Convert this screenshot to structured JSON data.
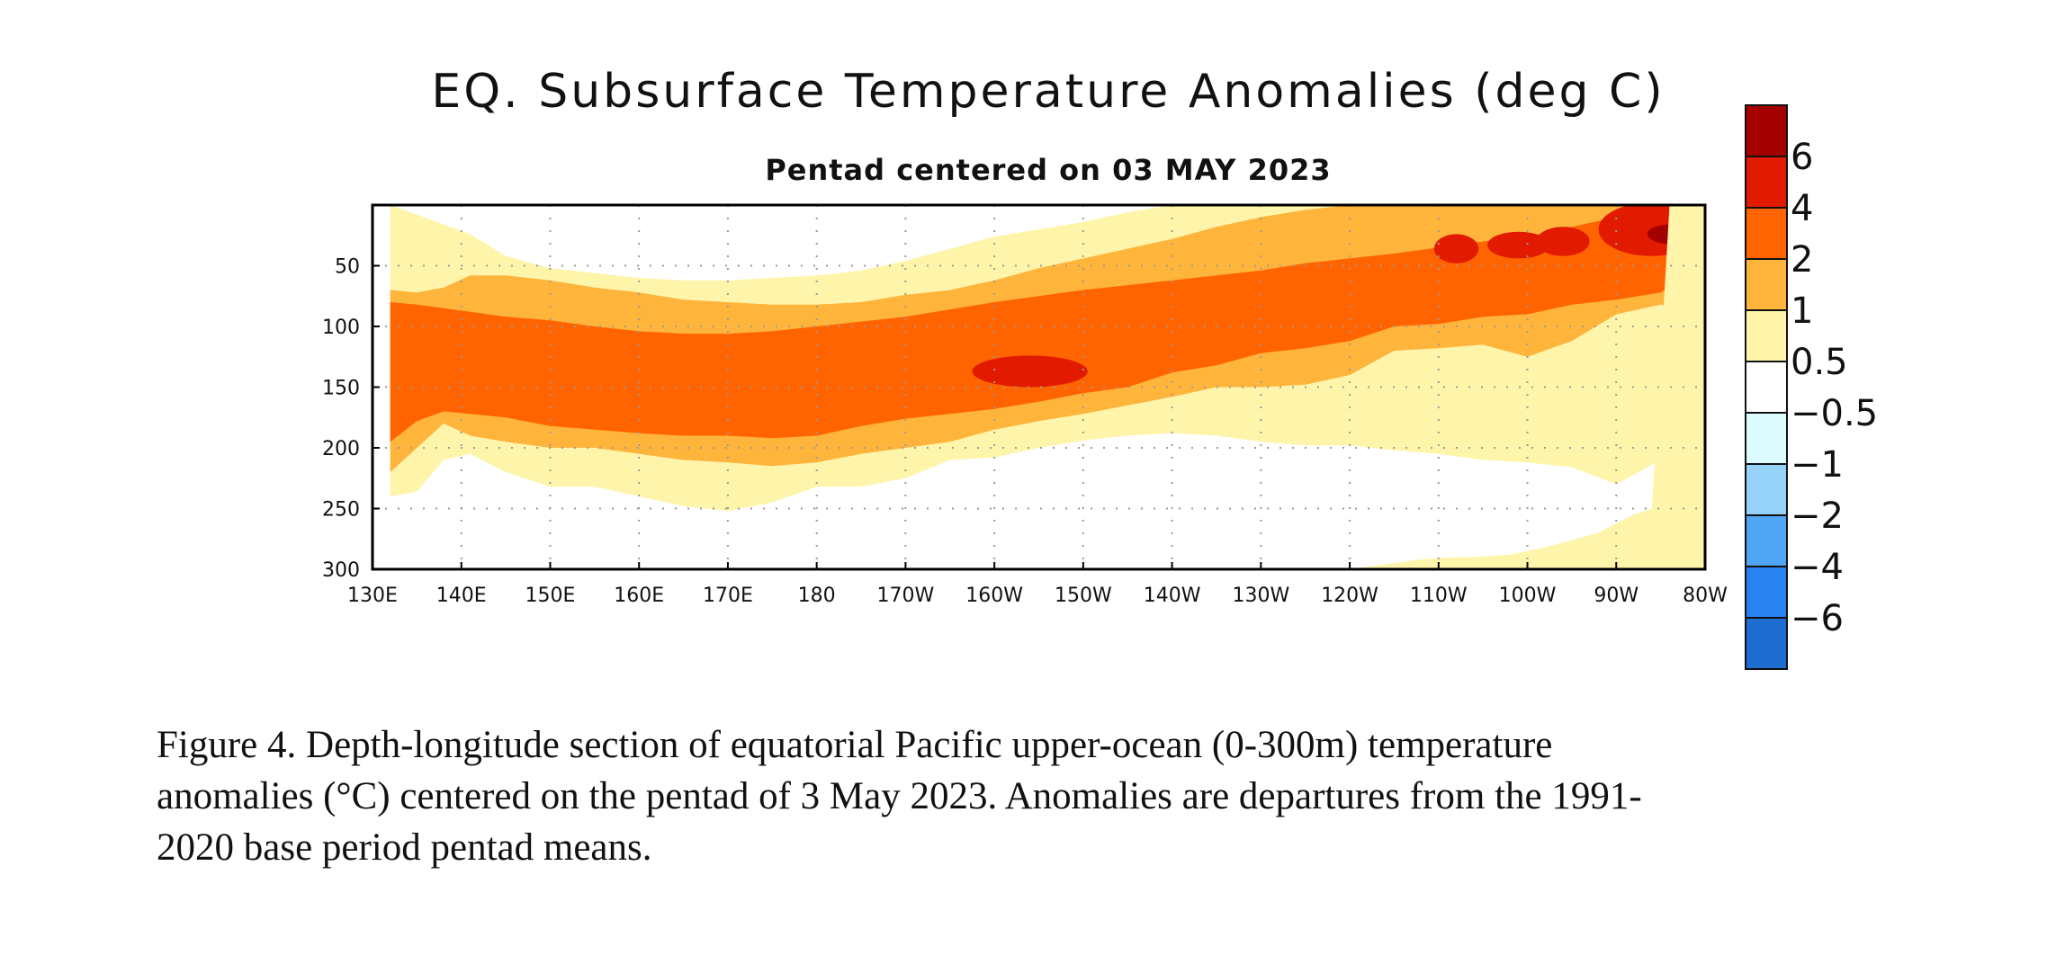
{
  "chart_data": {
    "type": "heatmap",
    "title": "EQ. Subsurface Temperature Anomalies (deg C)",
    "subtitle": "Pentad centered on 03 MAY 2023",
    "xlabel": "",
    "ylabel": "",
    "x_ticks": [
      "130E",
      "140E",
      "150E",
      "160E",
      "170E",
      "180",
      "170W",
      "160W",
      "150W",
      "140W",
      "130W",
      "120W",
      "110W",
      "100W",
      "90W",
      "80W"
    ],
    "x_values_lon_east": [
      130,
      140,
      150,
      160,
      170,
      180,
      190,
      200,
      210,
      220,
      230,
      240,
      250,
      260,
      270,
      280
    ],
    "xlim_lon_east": [
      130,
      280
    ],
    "y_ticks": [
      50,
      100,
      150,
      200,
      250,
      300
    ],
    "ylim_depth_m": [
      0,
      300
    ],
    "y_reversed": true,
    "grid": true,
    "legend_placement": "right",
    "colorbar": {
      "labels": [
        "6",
        "4",
        "2",
        "1",
        "0.5",
        "−0.5",
        "−1",
        "−2",
        "−4",
        "−6"
      ],
      "boundaries": [
        6,
        4,
        2,
        1,
        0.5,
        -0.5,
        -1,
        -2,
        -4,
        -6
      ],
      "colors": [
        "#a50000",
        "#e21a00",
        "#ff6400",
        "#ffb43c",
        "#fff5aa",
        "#ffffff",
        "#dcfcff",
        "#96d2fa",
        "#50a5f5",
        "#2882f0",
        "#1e6ed2"
      ]
    },
    "levels": [
      {
        "min": 0.5,
        "color": "#fff5aa",
        "lon": [
          132,
          135,
          138,
          141,
          145,
          150,
          155,
          160,
          165,
          170,
          175,
          180,
          185,
          190,
          195,
          200,
          205,
          210,
          215,
          220,
          225,
          230,
          235,
          240,
          245,
          250,
          255,
          260,
          265,
          270,
          275,
          280
        ],
        "top": [
          0,
          8,
          16,
          24,
          42,
          52,
          56,
          60,
          62,
          62,
          60,
          58,
          54,
          46,
          36,
          26,
          20,
          14,
          6,
          0,
          0,
          0,
          0,
          0,
          0,
          0,
          0,
          0,
          0,
          0,
          0,
          0
        ],
        "bottom": [
          240,
          236,
          210,
          205,
          220,
          232,
          232,
          240,
          248,
          252,
          245,
          232,
          232,
          225,
          210,
          208,
          200,
          194,
          190,
          188,
          190,
          195,
          198,
          198,
          202,
          205,
          210,
          212,
          216,
          230,
          210,
          190
        ]
      },
      {
        "min": 1,
        "color": "#ffb43c",
        "lon": [
          132,
          135,
          138,
          141,
          145,
          150,
          155,
          160,
          165,
          170,
          175,
          180,
          185,
          190,
          195,
          200,
          205,
          210,
          215,
          220,
          225,
          230,
          235,
          240,
          245,
          250,
          255,
          260,
          265,
          270,
          275,
          280
        ],
        "top": [
          70,
          72,
          68,
          58,
          58,
          62,
          68,
          72,
          78,
          80,
          82,
          82,
          80,
          74,
          70,
          62,
          52,
          44,
          36,
          28,
          18,
          10,
          4,
          0,
          0,
          0,
          0,
          0,
          0,
          0,
          0,
          0
        ],
        "bottom": [
          220,
          200,
          180,
          190,
          195,
          200,
          200,
          205,
          210,
          212,
          215,
          212,
          205,
          200,
          195,
          185,
          178,
          172,
          165,
          158,
          150,
          150,
          148,
          140,
          120,
          118,
          115,
          125,
          112,
          90,
          82,
          90
        ]
      },
      {
        "min": 2,
        "color": "#ff6400",
        "lon": [
          132,
          135,
          138,
          141,
          145,
          150,
          155,
          160,
          165,
          170,
          175,
          180,
          185,
          190,
          195,
          200,
          205,
          210,
          215,
          220,
          225,
          230,
          235,
          240,
          245,
          250,
          255,
          260,
          265,
          270,
          275,
          280
        ],
        "top": [
          80,
          82,
          85,
          88,
          92,
          95,
          100,
          104,
          106,
          106,
          104,
          100,
          96,
          92,
          86,
          80,
          75,
          70,
          66,
          62,
          58,
          54,
          48,
          44,
          40,
          35,
          30,
          26,
          18,
          10,
          8,
          5
        ],
        "bottom": [
          195,
          178,
          170,
          172,
          175,
          182,
          185,
          188,
          190,
          190,
          192,
          190,
          182,
          176,
          172,
          168,
          162,
          155,
          150,
          138,
          132,
          122,
          118,
          112,
          100,
          98,
          92,
          90,
          82,
          78,
          72,
          50
        ]
      },
      {
        "min": 4,
        "color": "#e21a00",
        "ellipses": [
          {
            "cx": 204,
            "cy": 137,
            "rx": 6.5,
            "ry": 13
          },
          {
            "cx": 252,
            "cy": 36,
            "rx": 2.5,
            "ry": 12
          },
          {
            "cx": 259,
            "cy": 33,
            "rx": 3.5,
            "ry": 11
          },
          {
            "cx": 264,
            "cy": 30,
            "rx": 3.0,
            "ry": 12
          },
          {
            "cx": 274,
            "cy": 20,
            "rx": 6.0,
            "ry": 22
          }
        ]
      },
      {
        "min": 6,
        "color": "#a50000",
        "ellipses": [
          {
            "cx": 276,
            "cy": 24,
            "rx": 2.5,
            "ry": 8
          }
        ]
      },
      {
        "min": 0.5,
        "color": "#fff5aa",
        "lon": [
          240,
          242,
          244,
          246,
          248,
          250,
          252,
          254,
          256,
          258,
          260,
          262,
          264,
          266,
          268,
          270,
          272,
          274,
          276,
          278,
          280
        ],
        "top": [
          300,
          298,
          296,
          294,
          292,
          291,
          290,
          290,
          289,
          288,
          285,
          282,
          278,
          274,
          270,
          262,
          255,
          250,
          0,
          0,
          0
        ],
        "bottom": [
          300,
          300,
          300,
          300,
          300,
          300,
          300,
          300,
          300,
          300,
          300,
          300,
          300,
          300,
          300,
          300,
          300,
          300,
          300,
          300,
          300
        ]
      }
    ]
  },
  "caption": {
    "line1": "Figure 4. Depth-longitude section of equatorial Pacific upper-ocean (0-300m) temperature",
    "line2": "anomalies (°C) centered on the pentad of 3 May 2023. Anomalies are departures from the 1991-",
    "line3": "2020 base period pentad means."
  }
}
